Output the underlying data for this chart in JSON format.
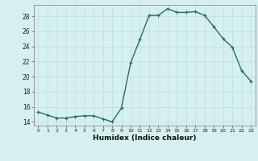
{
  "x": [
    0,
    1,
    2,
    3,
    4,
    5,
    6,
    7,
    8,
    9,
    10,
    11,
    12,
    13,
    14,
    15,
    16,
    17,
    18,
    19,
    20,
    21,
    22,
    23
  ],
  "y": [
    15.3,
    14.9,
    14.5,
    14.5,
    14.7,
    14.8,
    14.8,
    14.4,
    14.0,
    15.8,
    21.8,
    24.9,
    28.1,
    28.1,
    29.0,
    28.5,
    28.5,
    28.6,
    28.1,
    26.6,
    25.0,
    23.9,
    20.8,
    19.4
  ],
  "line_color": "#2e6b5e",
  "marker": "+",
  "bg_color": "#d6f0f0",
  "grid_color": "#c0e0e0",
  "xlabel": "Humidex (Indice chaleur)",
  "ylabel_ticks": [
    14,
    16,
    18,
    20,
    22,
    24,
    26,
    28
  ],
  "xlim": [
    -0.5,
    23.5
  ],
  "ylim": [
    13.5,
    29.5
  ],
  "xticks": [
    0,
    1,
    2,
    3,
    4,
    5,
    6,
    7,
    8,
    9,
    10,
    11,
    12,
    13,
    14,
    15,
    16,
    17,
    18,
    19,
    20,
    21,
    22,
    23
  ]
}
